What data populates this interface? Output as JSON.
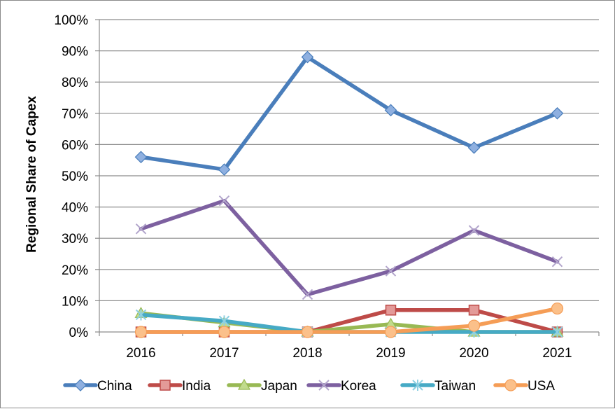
{
  "chart_data": {
    "type": "line",
    "title": "",
    "xlabel": "",
    "ylabel": "Regional Share of Capex",
    "categories": [
      "2016",
      "2017",
      "2018",
      "2019",
      "2020",
      "2021"
    ],
    "ylim": [
      0,
      100
    ],
    "y_ticks": [
      0,
      10,
      20,
      30,
      40,
      50,
      60,
      70,
      80,
      90,
      100
    ],
    "y_tick_labels": [
      "0%",
      "10%",
      "20%",
      "30%",
      "40%",
      "50%",
      "60%",
      "70%",
      "80%",
      "90%",
      "100%"
    ],
    "grid": true,
    "legend_position": "bottom",
    "series": [
      {
        "name": "China",
        "color": "#4a7ebb",
        "marker": "diamond",
        "values": [
          56,
          52,
          88,
          71,
          59,
          70
        ]
      },
      {
        "name": "India",
        "color": "#be4b48",
        "marker": "square",
        "values": [
          0,
          0,
          0,
          7,
          7,
          0
        ]
      },
      {
        "name": "Japan",
        "color": "#98b954",
        "marker": "triangle",
        "values": [
          6,
          3,
          0,
          2.5,
          0,
          0
        ]
      },
      {
        "name": "Korea",
        "color": "#7d60a0",
        "marker": "x",
        "values": [
          33,
          42,
          12,
          19.5,
          32.5,
          22.5
        ]
      },
      {
        "name": "Taiwan",
        "color": "#46aac5",
        "marker": "asterisk",
        "values": [
          5.5,
          3.5,
          0,
          0,
          0,
          0
        ]
      },
      {
        "name": "USA",
        "color": "#f59d56",
        "marker": "circle",
        "values": [
          0,
          0,
          0,
          0,
          2,
          7.5
        ]
      }
    ]
  }
}
